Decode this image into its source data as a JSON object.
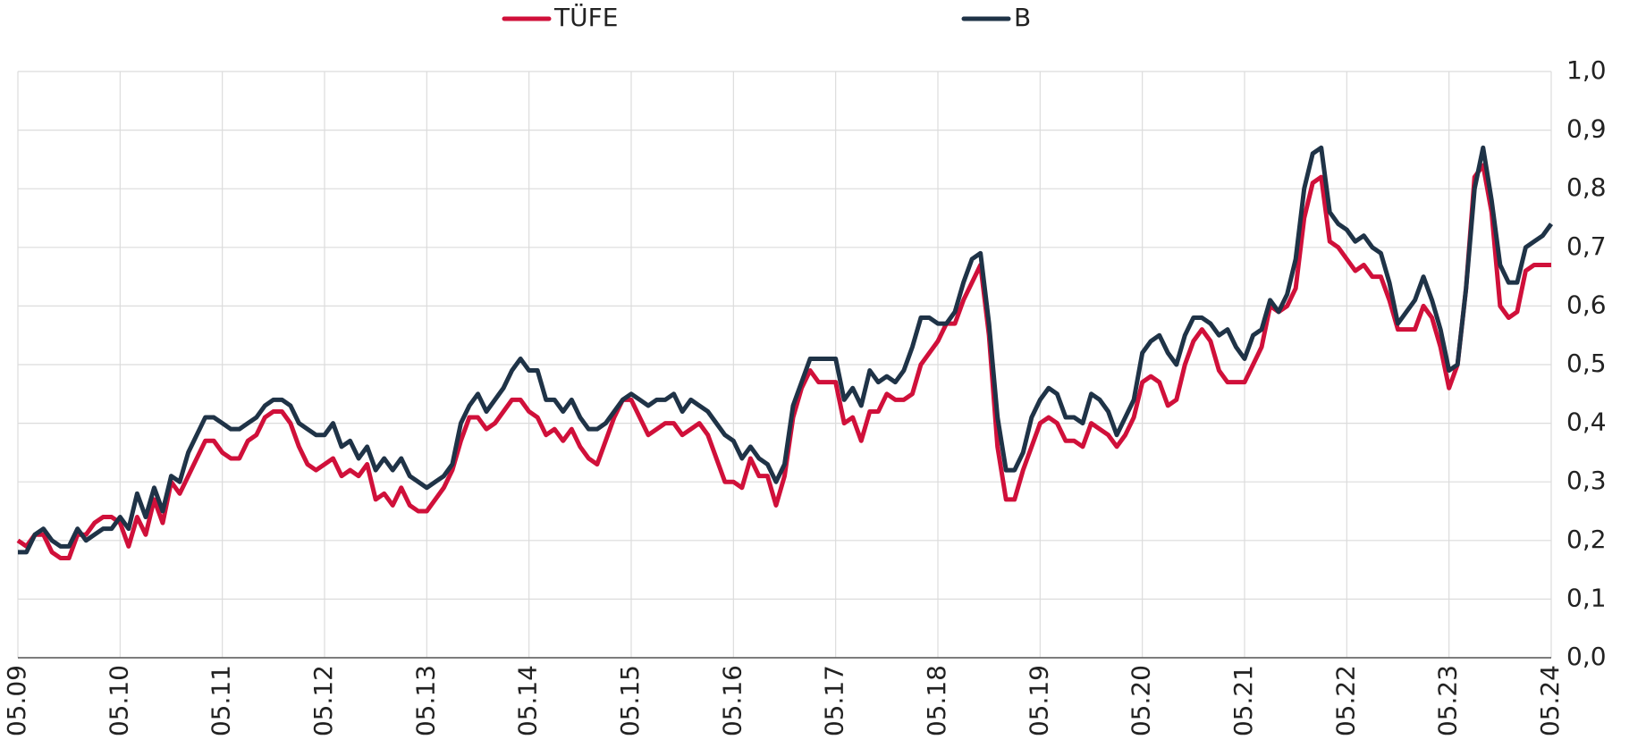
{
  "chart_data": {
    "type": "line",
    "categories": [
      "05.09",
      null,
      null,
      null,
      null,
      null,
      null,
      null,
      null,
      null,
      null,
      null,
      "05.10",
      null,
      null,
      null,
      null,
      null,
      null,
      null,
      null,
      null,
      null,
      null,
      "05.11",
      null,
      null,
      null,
      null,
      null,
      null,
      null,
      null,
      null,
      null,
      null,
      "05.12",
      null,
      null,
      null,
      null,
      null,
      null,
      null,
      null,
      null,
      null,
      null,
      "05.13",
      null,
      null,
      null,
      null,
      null,
      null,
      null,
      null,
      null,
      null,
      null,
      "05.14",
      null,
      null,
      null,
      null,
      null,
      null,
      null,
      null,
      null,
      null,
      null,
      "05.15",
      null,
      null,
      null,
      null,
      null,
      null,
      null,
      null,
      null,
      null,
      null,
      "05.16",
      null,
      null,
      null,
      null,
      null,
      null,
      null,
      null,
      null,
      null,
      null,
      "05.17",
      null,
      null,
      null,
      null,
      null,
      null,
      null,
      null,
      null,
      null,
      null,
      "05.18",
      null,
      null,
      null,
      null,
      null,
      null,
      null,
      null,
      null,
      null,
      null,
      "05.19",
      null,
      null,
      null,
      null,
      null,
      null,
      null,
      null,
      null,
      null,
      null,
      "05.20",
      null,
      null,
      null,
      null,
      null,
      null,
      null,
      null,
      null,
      null,
      null,
      "05.21",
      null,
      null,
      null,
      null,
      null,
      null,
      null,
      null,
      null,
      null,
      null,
      "05.22",
      null,
      null,
      null,
      null,
      null,
      null,
      null,
      null,
      null,
      null,
      null,
      "05.23",
      null,
      null,
      null,
      null,
      null,
      null,
      null,
      null,
      null,
      null,
      null,
      "05.24"
    ],
    "series": [
      {
        "name": "TÜFE",
        "color": "#d0103a",
        "values": [
          0.2,
          0.19,
          0.21,
          0.21,
          0.18,
          0.17,
          0.17,
          0.21,
          0.21,
          0.23,
          0.24,
          0.24,
          0.23,
          0.19,
          0.24,
          0.21,
          0.27,
          0.23,
          0.3,
          0.28,
          0.31,
          0.34,
          0.37,
          0.37,
          0.35,
          0.34,
          0.34,
          0.37,
          0.38,
          0.41,
          0.42,
          0.42,
          0.4,
          0.36,
          0.33,
          0.32,
          0.33,
          0.34,
          0.31,
          0.32,
          0.31,
          0.33,
          0.27,
          0.28,
          0.26,
          0.29,
          0.26,
          0.25,
          0.25,
          0.27,
          0.29,
          0.32,
          0.37,
          0.41,
          0.41,
          0.39,
          0.4,
          0.42,
          0.44,
          0.44,
          0.42,
          0.41,
          0.38,
          0.39,
          0.37,
          0.39,
          0.36,
          0.34,
          0.33,
          0.37,
          0.41,
          0.44,
          0.44,
          0.41,
          0.38,
          0.39,
          0.4,
          0.4,
          0.38,
          0.39,
          0.4,
          0.38,
          0.34,
          0.3,
          0.3,
          0.29,
          0.34,
          0.31,
          0.31,
          0.26,
          0.31,
          0.41,
          0.46,
          0.49,
          0.47,
          0.47,
          0.47,
          0.4,
          0.41,
          0.37,
          0.42,
          0.42,
          0.45,
          0.44,
          0.44,
          0.45,
          0.5,
          0.52,
          0.54,
          0.57,
          0.57,
          0.61,
          0.64,
          0.67,
          0.55,
          0.36,
          0.27,
          0.27,
          0.32,
          0.36,
          0.4,
          0.41,
          0.4,
          0.37,
          0.37,
          0.36,
          0.4,
          0.39,
          0.38,
          0.36,
          0.38,
          0.41,
          0.47,
          0.48,
          0.47,
          0.43,
          0.44,
          0.5,
          0.54,
          0.56,
          0.54,
          0.49,
          0.47,
          0.47,
          0.47,
          0.5,
          0.53,
          0.6,
          0.59,
          0.6,
          0.63,
          0.75,
          0.81,
          0.82,
          0.71,
          0.7,
          0.68,
          0.66,
          0.67,
          0.65,
          0.65,
          0.61,
          0.56,
          0.56,
          0.56,
          0.6,
          0.58,
          0.53,
          0.46,
          0.5,
          0.63,
          0.82,
          0.84,
          0.76,
          0.6,
          0.58,
          0.59,
          0.66,
          0.67,
          0.67,
          0.67
        ]
      },
      {
        "name": "B",
        "color": "#1f3347",
        "values": [
          0.18,
          0.18,
          0.21,
          0.22,
          0.2,
          0.19,
          0.19,
          0.22,
          0.2,
          0.21,
          0.22,
          0.22,
          0.24,
          0.22,
          0.28,
          0.24,
          0.29,
          0.25,
          0.31,
          0.3,
          0.35,
          0.38,
          0.41,
          0.41,
          0.4,
          0.39,
          0.39,
          0.4,
          0.41,
          0.43,
          0.44,
          0.44,
          0.43,
          0.4,
          0.39,
          0.38,
          0.38,
          0.4,
          0.36,
          0.37,
          0.34,
          0.36,
          0.32,
          0.34,
          0.32,
          0.34,
          0.31,
          0.3,
          0.29,
          0.3,
          0.31,
          0.33,
          0.4,
          0.43,
          0.45,
          0.42,
          0.44,
          0.46,
          0.49,
          0.51,
          0.49,
          0.49,
          0.44,
          0.44,
          0.42,
          0.44,
          0.41,
          0.39,
          0.39,
          0.4,
          0.42,
          0.44,
          0.45,
          0.44,
          0.43,
          0.44,
          0.44,
          0.45,
          0.42,
          0.44,
          0.43,
          0.42,
          0.4,
          0.38,
          0.37,
          0.34,
          0.36,
          0.34,
          0.33,
          0.3,
          0.33,
          0.43,
          0.47,
          0.51,
          0.51,
          0.51,
          0.51,
          0.44,
          0.46,
          0.43,
          0.49,
          0.47,
          0.48,
          0.47,
          0.49,
          0.53,
          0.58,
          0.58,
          0.57,
          0.57,
          0.59,
          0.64,
          0.68,
          0.69,
          0.57,
          0.41,
          0.32,
          0.32,
          0.35,
          0.41,
          0.44,
          0.46,
          0.45,
          0.41,
          0.41,
          0.4,
          0.45,
          0.44,
          0.42,
          0.38,
          0.41,
          0.44,
          0.52,
          0.54,
          0.55,
          0.52,
          0.5,
          0.55,
          0.58,
          0.58,
          0.57,
          0.55,
          0.56,
          0.53,
          0.51,
          0.55,
          0.56,
          0.61,
          0.59,
          0.62,
          0.68,
          0.8,
          0.86,
          0.87,
          0.76,
          0.74,
          0.73,
          0.71,
          0.72,
          0.7,
          0.69,
          0.64,
          0.57,
          0.59,
          0.61,
          0.65,
          0.61,
          0.56,
          0.49,
          0.5,
          0.63,
          0.8,
          0.87,
          0.78,
          0.67,
          0.64,
          0.64,
          0.7,
          0.71,
          0.72,
          0.74
        ]
      }
    ],
    "ylim": [
      0,
      1
    ],
    "yticks": [
      {
        "value": 0,
        "label": "0,0"
      },
      {
        "value": 0.1,
        "label": "0,1"
      },
      {
        "value": 0.2,
        "label": "0,2"
      },
      {
        "value": 0.3,
        "label": "0,3"
      },
      {
        "value": 0.4,
        "label": "0,4"
      },
      {
        "value": 0.5,
        "label": "0,5"
      },
      {
        "value": 0.6,
        "label": "0,6"
      },
      {
        "value": 0.7,
        "label": "0,7"
      },
      {
        "value": 0.8,
        "label": "0,8"
      },
      {
        "value": 0.9,
        "label": "0,9"
      },
      {
        "value": 1,
        "label": "1,0"
      }
    ],
    "grid": true,
    "legend": "top"
  }
}
